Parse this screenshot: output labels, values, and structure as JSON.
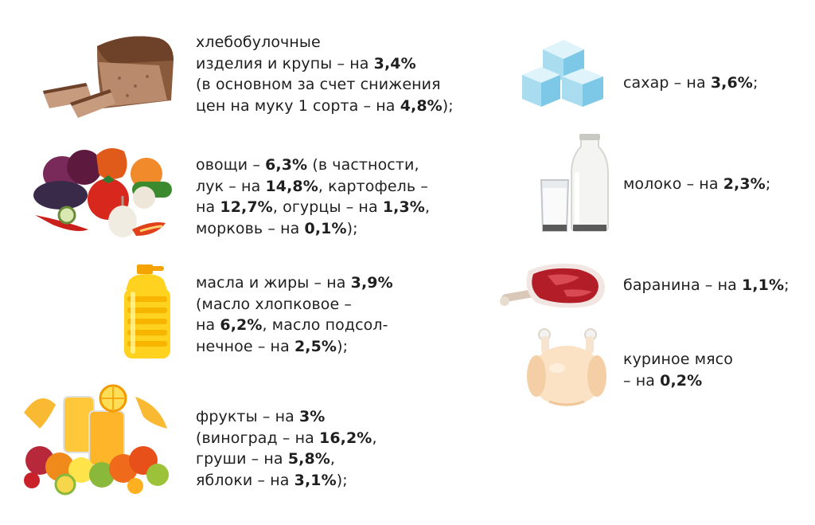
{
  "items": [
    {
      "icon": "bread-icon",
      "lines": [
        [
          {
            "t": "хлебобулочные"
          }
        ],
        [
          {
            "t": "изделия и крупы – на "
          },
          {
            "b": "3,4%"
          }
        ],
        [
          {
            "t": "(в основном за счет снижения"
          }
        ],
        [
          {
            "t": "цен на муку 1 сорта – на "
          },
          {
            "b": "4,8%"
          },
          {
            "t": ");"
          }
        ]
      ]
    },
    {
      "icon": "vegetables-icon",
      "lines": [
        [
          {
            "t": "овощи – "
          },
          {
            "b": "6,3%"
          },
          {
            "t": " (в частности,"
          }
        ],
        [
          {
            "t": "лук – на "
          },
          {
            "b": "14,8%"
          },
          {
            "t": ", картофель –"
          }
        ],
        [
          {
            "t": "на "
          },
          {
            "b": "12,7%"
          },
          {
            "t": ", огурцы – на "
          },
          {
            "b": "1,3%"
          },
          {
            "t": ","
          }
        ],
        [
          {
            "t": "морковь – на "
          },
          {
            "b": "0,1%"
          },
          {
            "t": ");"
          }
        ]
      ]
    },
    {
      "icon": "oil-bottle-icon",
      "lines": [
        [
          {
            "t": "масла и жиры – на "
          },
          {
            "b": "3,9%"
          }
        ],
        [
          {
            "t": "(масло хлопковое –"
          }
        ],
        [
          {
            "t": "на "
          },
          {
            "b": "6,2%"
          },
          {
            "t": ", масло подсол-"
          }
        ],
        [
          {
            "t": "нечное – на "
          },
          {
            "b": "2,5%"
          },
          {
            "t": ");"
          }
        ]
      ]
    },
    {
      "icon": "fruits-icon",
      "lines": [
        [
          {
            "t": "фрукты – на "
          },
          {
            "b": "3%"
          }
        ],
        [
          {
            "t": "(виноград – на "
          },
          {
            "b": "16,2%"
          },
          {
            "t": ","
          }
        ],
        [
          {
            "t": "груши – на "
          },
          {
            "b": "5,8%"
          },
          {
            "t": ","
          }
        ],
        [
          {
            "t": "яблоки – на "
          },
          {
            "b": "3,1%"
          },
          {
            "t": ");"
          }
        ]
      ]
    },
    {
      "icon": "sugar-cubes-icon",
      "lines": [
        [
          {
            "t": "сахар – на "
          },
          {
            "b": "3,6%"
          },
          {
            "t": ";"
          }
        ]
      ]
    },
    {
      "icon": "milk-icon",
      "lines": [
        [
          {
            "t": "молоко – на "
          },
          {
            "b": "2,3%"
          },
          {
            "t": ";"
          }
        ]
      ]
    },
    {
      "icon": "lamb-meat-icon",
      "lines": [
        [
          {
            "t": "баранина – на "
          },
          {
            "b": "1,1%"
          },
          {
            "t": ";"
          }
        ]
      ]
    },
    {
      "icon": "chicken-icon",
      "lines": [
        [
          {
            "t": "куриное мясо"
          }
        ],
        [
          {
            "t": "– на "
          },
          {
            "b": "0,2%"
          }
        ]
      ]
    }
  ],
  "colors": {
    "text": "#1f1f1f",
    "background": "#ffffff"
  }
}
